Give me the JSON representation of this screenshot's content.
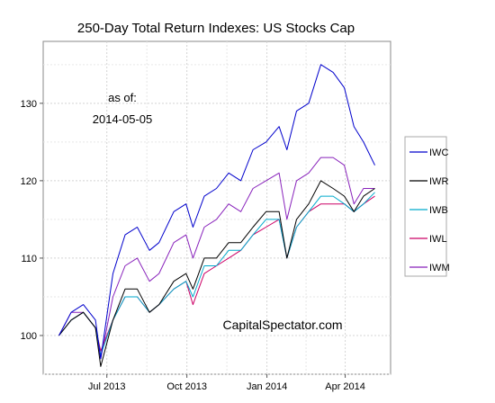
{
  "chart_data": {
    "type": "line",
    "title": "250-Day Total Return Indexes: US Stocks Cap",
    "xlabel": "",
    "ylabel": "",
    "x_range": [
      "2013-05-07",
      "2014-05-05"
    ],
    "ylim": [
      95,
      138
    ],
    "y_ticks": [
      100,
      110,
      120,
      130
    ],
    "x_ticks": [
      {
        "date": "2013-07-01",
        "label": "Jul 2013"
      },
      {
        "date": "2013-10-01",
        "label": "Oct 2013"
      },
      {
        "date": "2014-01-01",
        "label": "Jan 2014"
      },
      {
        "date": "2014-04-01",
        "label": "Apr 2014"
      }
    ],
    "grid": true,
    "legend_position": "right",
    "annotations": {
      "as_of_label": "as of:",
      "as_of_date": "2014-05-05",
      "watermark": "CapitalSpectator.com"
    },
    "x": [
      "2013-05-07",
      "2013-05-21",
      "2013-06-04",
      "2013-06-18",
      "2013-06-24",
      "2013-07-08",
      "2013-07-22",
      "2013-08-05",
      "2013-08-19",
      "2013-08-30",
      "2013-09-16",
      "2013-09-30",
      "2013-10-08",
      "2013-10-21",
      "2013-11-04",
      "2013-11-18",
      "2013-12-02",
      "2013-12-16",
      "2013-12-31",
      "2014-01-15",
      "2014-01-24",
      "2014-02-04",
      "2014-02-18",
      "2014-03-04",
      "2014-03-18",
      "2014-03-31",
      "2014-04-11",
      "2014-04-22",
      "2014-05-05"
    ],
    "series": [
      {
        "name": "IWC",
        "color": "#0000cc",
        "values": [
          100,
          103,
          104,
          102,
          97,
          108,
          113,
          114,
          111,
          112,
          116,
          117,
          114,
          118,
          119,
          121,
          120,
          124,
          125,
          127,
          124,
          129,
          130,
          135,
          134,
          132,
          127,
          125,
          122
        ]
      },
      {
        "name": "IWR",
        "color": "#000000",
        "values": [
          100,
          102,
          103,
          101,
          96,
          102,
          106,
          106,
          103,
          104,
          107,
          108,
          106,
          110,
          110,
          112,
          112,
          114,
          116,
          116,
          110,
          115,
          117,
          120,
          119,
          118,
          116,
          118,
          119
        ]
      },
      {
        "name": "IWB",
        "color": "#00aacc",
        "values": [
          100,
          102,
          103,
          101,
          97.5,
          102,
          105,
          105,
          103,
          104,
          106,
          107,
          105,
          109,
          109,
          111,
          111,
          113,
          115,
          115,
          110,
          114,
          116,
          118,
          118,
          117,
          116,
          117,
          118.5
        ]
      },
      {
        "name": "IWL",
        "color": "#cc0066",
        "values": [
          100,
          102,
          103,
          101,
          98,
          102,
          105,
          105,
          103,
          104,
          106,
          107,
          104,
          108,
          109,
          110,
          111,
          113,
          114,
          115,
          110,
          114,
          116,
          117,
          117,
          117,
          116,
          117,
          118
        ]
      },
      {
        "name": "IWM",
        "color": "#8822bb",
        "values": [
          100,
          103,
          103,
          101,
          97,
          105,
          109,
          110,
          107,
          108,
          112,
          113,
          110,
          114,
          115,
          117,
          116,
          119,
          120,
          121,
          115,
          120,
          121,
          123,
          123,
          122,
          117,
          119,
          119
        ]
      }
    ]
  }
}
